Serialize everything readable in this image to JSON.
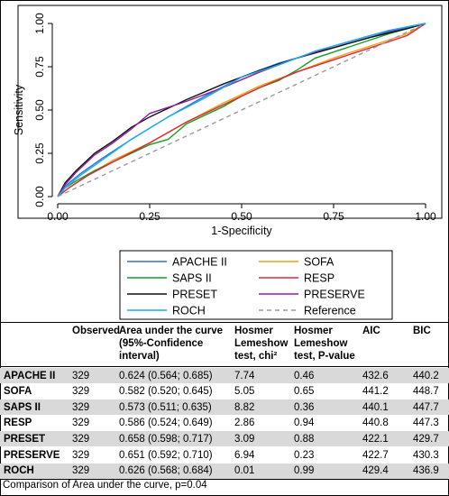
{
  "chart_data": {
    "type": "line",
    "title": "",
    "xlabel": "1-Specificity",
    "ylabel": "Sensitivity",
    "xlim": [
      0,
      1
    ],
    "ylim": [
      0,
      1
    ],
    "xticks": [
      "0.00",
      "0.25",
      "0.50",
      "0.75",
      "1.00"
    ],
    "yticks": [
      "0.00",
      "0.25",
      "0.50",
      "0.75",
      "1.00"
    ],
    "grid": false,
    "legend_position": "bottom",
    "series": [
      {
        "name": "APACHE II",
        "color": "#2f6fde",
        "x": [
          0,
          0.02,
          0.06,
          0.12,
          0.2,
          0.3,
          0.4,
          0.5,
          0.6,
          0.7,
          0.8,
          0.9,
          1
        ],
        "y": [
          0,
          0.06,
          0.13,
          0.22,
          0.33,
          0.46,
          0.58,
          0.69,
          0.77,
          0.83,
          0.89,
          0.95,
          1
        ]
      },
      {
        "name": "SOFA",
        "color": "#e8a317",
        "x": [
          0,
          0.03,
          0.08,
          0.15,
          0.25,
          0.35,
          0.45,
          0.55,
          0.65,
          0.75,
          0.85,
          0.95,
          1
        ],
        "y": [
          0,
          0.05,
          0.12,
          0.21,
          0.31,
          0.43,
          0.54,
          0.64,
          0.72,
          0.8,
          0.87,
          0.94,
          1
        ]
      },
      {
        "name": "SAPS II",
        "color": "#13a020",
        "x": [
          0,
          0.02,
          0.05,
          0.1,
          0.15,
          0.2,
          0.25,
          0.3,
          0.35,
          0.4,
          0.45,
          0.5,
          0.55,
          0.6,
          0.65,
          0.7,
          0.8,
          0.9,
          1
        ],
        "y": [
          0,
          0.05,
          0.09,
          0.15,
          0.2,
          0.25,
          0.3,
          0.33,
          0.42,
          0.47,
          0.52,
          0.58,
          0.63,
          0.67,
          0.73,
          0.8,
          0.87,
          0.94,
          1
        ]
      },
      {
        "name": "RESP",
        "color": "#e0283c",
        "x": [
          0,
          0.03,
          0.08,
          0.15,
          0.25,
          0.35,
          0.45,
          0.55,
          0.65,
          0.75,
          0.85,
          0.95,
          1
        ],
        "y": [
          0,
          0.05,
          0.12,
          0.2,
          0.31,
          0.43,
          0.53,
          0.63,
          0.72,
          0.79,
          0.86,
          0.93,
          1
        ]
      },
      {
        "name": "PRESET",
        "color": "#111111",
        "x": [
          0,
          0.02,
          0.05,
          0.1,
          0.15,
          0.2,
          0.25,
          0.35,
          0.45,
          0.55,
          0.65,
          0.75,
          0.85,
          0.95,
          1
        ],
        "y": [
          0,
          0.08,
          0.15,
          0.25,
          0.32,
          0.4,
          0.46,
          0.56,
          0.65,
          0.73,
          0.8,
          0.86,
          0.92,
          0.97,
          1
        ]
      },
      {
        "name": "PRESERVE",
        "color": "#8b1fa0",
        "x": [
          0,
          0.02,
          0.05,
          0.1,
          0.15,
          0.2,
          0.25,
          0.35,
          0.45,
          0.55,
          0.65,
          0.75,
          0.85,
          0.95,
          1
        ],
        "y": [
          0,
          0.07,
          0.14,
          0.24,
          0.31,
          0.39,
          0.48,
          0.55,
          0.63,
          0.72,
          0.8,
          0.87,
          0.93,
          0.98,
          1
        ]
      },
      {
        "name": "ROCH",
        "color": "#1bb0e6",
        "x": [
          0,
          0.02,
          0.06,
          0.12,
          0.2,
          0.3,
          0.4,
          0.5,
          0.6,
          0.7,
          0.8,
          0.9,
          1
        ],
        "y": [
          0,
          0.05,
          0.12,
          0.21,
          0.33,
          0.46,
          0.57,
          0.69,
          0.76,
          0.84,
          0.9,
          0.96,
          1
        ]
      },
      {
        "name": "Reference",
        "color": "#9a9a9a",
        "dashed": true,
        "x": [
          0,
          1
        ],
        "y": [
          0,
          1
        ]
      }
    ]
  },
  "table": {
    "headers": [
      "",
      "Observed",
      "Area under the curve (95%-Confidence interval)",
      "Hosmer Lemeshow test, chi²",
      "Hosmer Lemeshow test, P-value",
      "AIC",
      "BIC"
    ],
    "rows": [
      [
        "APACHE II",
        "329",
        "0.624 (0.564; 0.685)",
        "7.74",
        "0.46",
        "432.6",
        "440.2"
      ],
      [
        "SOFA",
        "329",
        "0.582 (0.520; 0.645)",
        "5.05",
        "0.65",
        "441.2",
        "448.7"
      ],
      [
        "SAPS II",
        "329",
        "0.573 (0.511; 0.635)",
        "8.82",
        "0.36",
        "440.1",
        "447.7"
      ],
      [
        "RESP",
        "329",
        "0.586 (0.524; 0.649)",
        "2.86",
        "0.94",
        "440.8",
        "447.3"
      ],
      [
        "PRESET",
        "329",
        "0.658 (0.598; 0.717)",
        "3.09",
        "0.88",
        "422.1",
        "429.7"
      ],
      [
        "PRESERVE",
        "329",
        "0.651 (0.592; 0.710)",
        "6.94",
        "0.23",
        "422.7",
        "430.3"
      ],
      [
        "ROCH",
        "329",
        "0.626 (0.568; 0.684)",
        "0.01",
        "0.99",
        "429.4",
        "436.9"
      ]
    ],
    "footnote": "Comparison of Area under the curve, p=0.04"
  }
}
